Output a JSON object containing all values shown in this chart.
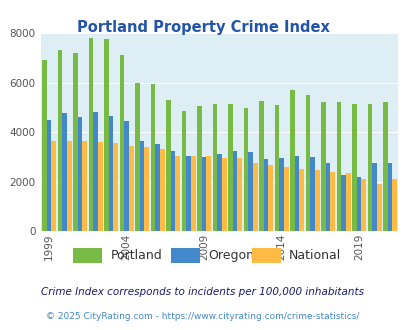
{
  "title": "Portland Property Crime Index",
  "years": [
    1999,
    2000,
    2001,
    2002,
    2003,
    2004,
    2005,
    2006,
    2007,
    2008,
    2009,
    2010,
    2011,
    2012,
    2013,
    2014,
    2015,
    2016,
    2017,
    2018,
    2019,
    2020,
    2021
  ],
  "portland": [
    6900,
    7300,
    7200,
    7800,
    7750,
    7100,
    6000,
    5950,
    5300,
    4850,
    5050,
    5150,
    5150,
    4950,
    5250,
    5100,
    5700,
    5500,
    5200,
    5200,
    5150,
    5150,
    5200
  ],
  "oregon": [
    4500,
    4750,
    4600,
    4800,
    4650,
    4450,
    3650,
    3500,
    3250,
    3050,
    3000,
    3100,
    3250,
    3200,
    2900,
    2950,
    3050,
    3000,
    2750,
    2250,
    2200,
    2750,
    2750
  ],
  "national": [
    3650,
    3650,
    3650,
    3600,
    3550,
    3450,
    3400,
    3300,
    3050,
    3050,
    3050,
    2950,
    2950,
    2750,
    2650,
    2600,
    2500,
    2450,
    2400,
    2350,
    2100,
    1900,
    2100
  ],
  "portland_color": "#77bb44",
  "oregon_color": "#4488cc",
  "national_color": "#ffbb44",
  "bg_color": "#ddeef4",
  "ylim": [
    0,
    8000
  ],
  "yticks": [
    0,
    2000,
    4000,
    6000,
    8000
  ],
  "xticks_years": [
    1999,
    2004,
    2009,
    2014,
    2019
  ],
  "subtitle": "Crime Index corresponds to incidents per 100,000 inhabitants",
  "footer": "© 2025 CityRating.com - https://www.cityrating.com/crime-statistics/",
  "title_color": "#2255aa",
  "subtitle_color": "#1a1a6e",
  "footer_color": "#4488cc"
}
